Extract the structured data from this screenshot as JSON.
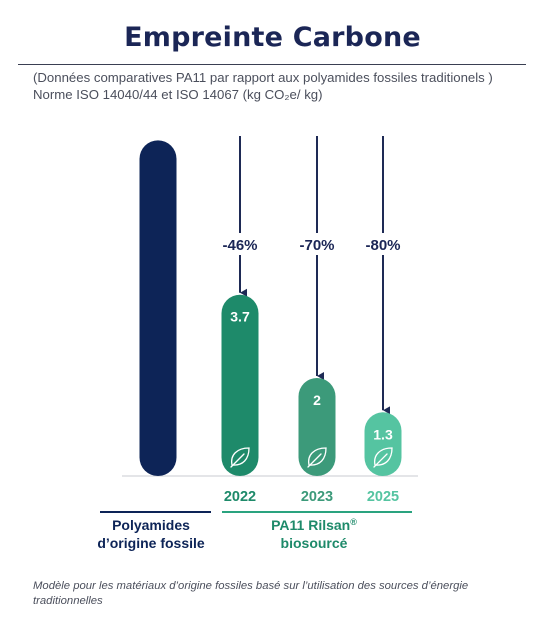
{
  "header": {
    "title": "Empreinte Carbone",
    "subtitle": "(Données comparatives PA11 par rapport aux polyamides fossiles traditionels ) Norme ISO 14040/44 et ISO 14067 (kg CO₂e/ kg)"
  },
  "footnote": "Modèle pour les matériaux d’origine fossiles basé sur l’utilisation des sources d’énergie traditionnelles",
  "chart_data": {
    "type": "bar",
    "categories": [
      "",
      "2022",
      "2023",
      "2025"
    ],
    "values": [
      6.85,
      3.7,
      2,
      1.3
    ],
    "value_labels": [
      "",
      "3.7",
      "2",
      "1.3"
    ],
    "reductions": [
      "",
      "-46%",
      "-70%",
      "-80%"
    ],
    "groups": [
      {
        "label_line1": "Polyamides",
        "label_line2": "d’origine fossile"
      },
      {
        "label_line1": "PA11 Rilsan",
        "label_sup": "®",
        "label_line2": "biosourcé"
      }
    ],
    "colors": [
      "#0d2457",
      "#1e8a6a",
      "#3c9a7a",
      "#55c4a1"
    ],
    "label_colors": [
      "#0d2457",
      "#1e8a6a",
      "#3c9a7a",
      "#55c4a1"
    ],
    "group_line_colors": [
      "#0d2457",
      "#2aa37f"
    ],
    "arrow_color": "#1e2a55",
    "leaf_icon": "leaf-icon"
  }
}
